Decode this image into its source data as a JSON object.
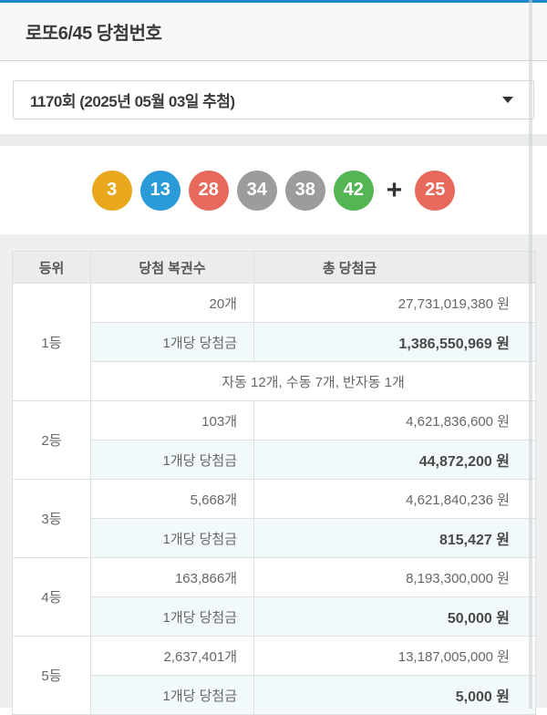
{
  "page": {
    "title": "로또6/45 당첨번호",
    "draw_select": {
      "value": "1170회 (2025년 05월 03일 추첨)"
    },
    "icons": {
      "dropdown_caret": "triangle-down"
    },
    "balls": [
      {
        "number": "3",
        "color": "#E9A71D"
      },
      {
        "number": "13",
        "color": "#2B9BD8"
      },
      {
        "number": "28",
        "color": "#E7695C"
      },
      {
        "number": "34",
        "color": "#9C9C9C"
      },
      {
        "number": "38",
        "color": "#9C9C9C"
      },
      {
        "number": "42",
        "color": "#54B554"
      }
    ],
    "plus_sign": "+",
    "bonus_ball": {
      "number": "25",
      "color": "#E7695C"
    },
    "table": {
      "headers": [
        "등위",
        "당첨 복권수",
        "총 당첨금"
      ],
      "per_ticket_label": "1개당 당첨금",
      "ranks": [
        {
          "rank": "1등",
          "count": "20개",
          "total": "27,731,019,380 원",
          "per_ticket": "1,386,550,969 원",
          "note": "자동 12개, 수동 7개, 반자동 1개"
        },
        {
          "rank": "2등",
          "count": "103개",
          "total": "4,621,836,600 원",
          "per_ticket": "44,872,200 원"
        },
        {
          "rank": "3등",
          "count": "5,668개",
          "total": "4,621,840,236 원",
          "per_ticket": "815,427 원"
        },
        {
          "rank": "4등",
          "count": "163,866개",
          "total": "8,193,300,000 원",
          "per_ticket": "50,000 원"
        },
        {
          "rank": "5등",
          "count": "2,637,401개",
          "total": "13,187,005,000 원",
          "per_ticket": "5,000 원"
        }
      ]
    },
    "colors": {
      "top_bar": "#1F87C9",
      "section_bg": "#EDEFF0",
      "divider_strip": "#E9EBEC",
      "highlight_row_bg": "#F2F9FA",
      "ball_yellow": "#E9A71D",
      "ball_blue": "#2B9BD8",
      "ball_red": "#E7695C",
      "ball_gray": "#9C9C9C",
      "ball_green": "#54B554"
    }
  }
}
